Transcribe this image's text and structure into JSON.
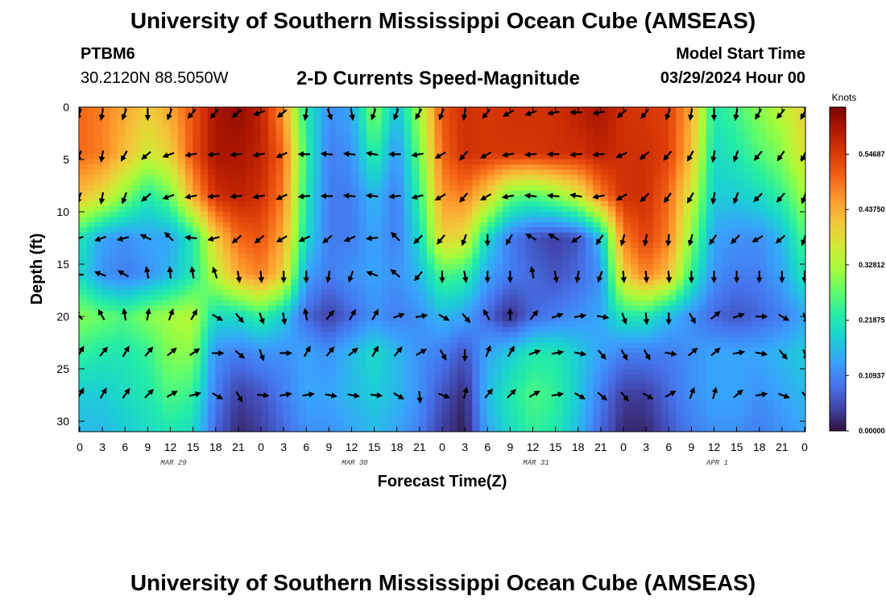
{
  "page": {
    "title": "University of Southern Mississippi Ocean Cube (AMSEAS)",
    "title_repeat": "University of Southern Mississippi Ocean Cube (AMSEAS)",
    "station": "PTBM6",
    "coords": "30.2120N  88.5050W",
    "subtitle": "2-D Currents Speed-Magnitude",
    "start_label": "Model Start Time",
    "start_value": "03/29/2024 Hour 00"
  },
  "chart_data": {
    "type": "heatmap",
    "title": "2-D Currents Speed-Magnitude",
    "xlabel": "Forecast Time(Z)",
    "ylabel": "Depth (ft)",
    "x_hours_range": [
      0,
      96
    ],
    "x_tick_labels": [
      "0",
      "3",
      "6",
      "9",
      "12",
      "15",
      "18",
      "21",
      "0",
      "3",
      "6",
      "9",
      "12",
      "15",
      "18",
      "21",
      "0",
      "3",
      "6",
      "9",
      "12",
      "15",
      "18",
      "21",
      "0",
      "3",
      "6",
      "9",
      "12",
      "15",
      "18",
      "21",
      "0"
    ],
    "date_labels": [
      {
        "label": "MAR 29",
        "hour": 12
      },
      {
        "label": "MAR 30",
        "hour": 36
      },
      {
        "label": "MAR 31",
        "hour": 60
      },
      {
        "label": "APR 1",
        "hour": 84
      }
    ],
    "y_range_ft": [
      0,
      31
    ],
    "y_ticks": [
      "0",
      "5",
      "10",
      "15",
      "20",
      "25",
      "30"
    ],
    "colorbar": {
      "unit": "Knots",
      "range": [
        0,
        0.64
      ],
      "tick_values": [
        0,
        0.109375,
        0.21875,
        0.328125,
        0.4375,
        0.546875
      ],
      "tick_labels": [
        "0.00000",
        "0.10937",
        "0.21875",
        "0.32812",
        "0.43750",
        "0.54687"
      ],
      "colors": [
        "#30123b",
        "#4145ab",
        "#4675ed",
        "#39a2fc",
        "#1bcfd4",
        "#24eca6",
        "#61fc6c",
        "#a4fc3b",
        "#d1e834",
        "#f3c63a",
        "#fe9b2d",
        "#f36315",
        "#d93806",
        "#b11901",
        "#7a0403"
      ]
    },
    "series": [
      {
        "name": "depth 0.5 ft speed",
        "depth_ft": 0.5,
        "values": [
          0.5,
          0.48,
          0.44,
          0.4,
          0.44,
          0.52,
          0.6,
          0.62,
          0.58,
          0.46,
          0.22,
          0.12,
          0.14,
          0.3,
          0.16,
          0.32,
          0.52,
          0.56,
          0.55,
          0.56,
          0.56,
          0.56,
          0.58,
          0.6,
          0.56,
          0.55,
          0.54,
          0.44,
          0.22,
          0.25,
          0.3,
          0.34,
          0.4
        ]
      },
      {
        "name": "depth 4.5 ft speed",
        "depth_ft": 4.5,
        "values": [
          0.5,
          0.48,
          0.42,
          0.36,
          0.4,
          0.52,
          0.6,
          0.6,
          0.58,
          0.5,
          0.24,
          0.1,
          0.12,
          0.24,
          0.12,
          0.28,
          0.5,
          0.56,
          0.55,
          0.55,
          0.55,
          0.56,
          0.56,
          0.58,
          0.56,
          0.56,
          0.54,
          0.42,
          0.2,
          0.22,
          0.26,
          0.3,
          0.38
        ]
      },
      {
        "name": "depth 8.5 ft speed",
        "depth_ft": 8.5,
        "values": [
          0.42,
          0.38,
          0.3,
          0.22,
          0.28,
          0.44,
          0.56,
          0.58,
          0.56,
          0.48,
          0.22,
          0.1,
          0.1,
          0.16,
          0.1,
          0.24,
          0.46,
          0.48,
          0.4,
          0.28,
          0.26,
          0.3,
          0.36,
          0.48,
          0.56,
          0.56,
          0.5,
          0.36,
          0.18,
          0.18,
          0.2,
          0.24,
          0.32
        ]
      },
      {
        "name": "depth 12.5 ft speed",
        "depth_ft": 12.5,
        "values": [
          0.22,
          0.14,
          0.12,
          0.14,
          0.14,
          0.22,
          0.4,
          0.5,
          0.52,
          0.44,
          0.2,
          0.1,
          0.1,
          0.14,
          0.1,
          0.2,
          0.4,
          0.38,
          0.2,
          0.1,
          0.06,
          0.04,
          0.06,
          0.16,
          0.48,
          0.54,
          0.48,
          0.3,
          0.14,
          0.12,
          0.12,
          0.16,
          0.26
        ]
      },
      {
        "name": "depth 16 ft speed",
        "depth_ft": 16,
        "values": [
          0.2,
          0.12,
          0.1,
          0.12,
          0.16,
          0.22,
          0.34,
          0.44,
          0.48,
          0.4,
          0.14,
          0.1,
          0.12,
          0.14,
          0.12,
          0.16,
          0.26,
          0.24,
          0.14,
          0.1,
          0.08,
          0.06,
          0.08,
          0.12,
          0.4,
          0.48,
          0.42,
          0.24,
          0.12,
          0.1,
          0.1,
          0.14,
          0.22
        ]
      },
      {
        "name": "depth 20 ft speed",
        "depth_ft": 20,
        "values": [
          0.3,
          0.28,
          0.26,
          0.3,
          0.32,
          0.34,
          0.2,
          0.2,
          0.24,
          0.18,
          0.08,
          0.04,
          0.08,
          0.12,
          0.1,
          0.12,
          0.16,
          0.14,
          0.08,
          0.02,
          0.08,
          0.1,
          0.12,
          0.14,
          0.22,
          0.22,
          0.16,
          0.12,
          0.08,
          0.06,
          0.08,
          0.1,
          0.14
        ]
      },
      {
        "name": "depth 23.5 ft speed",
        "depth_ft": 23.5,
        "values": [
          0.24,
          0.22,
          0.22,
          0.24,
          0.3,
          0.3,
          0.12,
          0.1,
          0.12,
          0.12,
          0.14,
          0.12,
          0.16,
          0.2,
          0.16,
          0.12,
          0.1,
          0.06,
          0.14,
          0.18,
          0.22,
          0.22,
          0.18,
          0.14,
          0.1,
          0.1,
          0.1,
          0.12,
          0.14,
          0.14,
          0.14,
          0.16,
          0.18
        ]
      },
      {
        "name": "depth 27.5 ft speed",
        "depth_ft": 27.5,
        "values": [
          0.18,
          0.18,
          0.2,
          0.22,
          0.26,
          0.24,
          0.1,
          0.04,
          0.06,
          0.1,
          0.14,
          0.14,
          0.16,
          0.18,
          0.16,
          0.12,
          0.06,
          0.02,
          0.16,
          0.22,
          0.26,
          0.24,
          0.18,
          0.1,
          0.04,
          0.04,
          0.08,
          0.12,
          0.14,
          0.14,
          0.12,
          0.14,
          0.16
        ]
      },
      {
        "name": "depth 31 ft speed",
        "depth_ft": 31,
        "values": [
          0.16,
          0.16,
          0.18,
          0.2,
          0.22,
          0.2,
          0.08,
          0.02,
          0.04,
          0.08,
          0.12,
          0.12,
          0.14,
          0.16,
          0.14,
          0.1,
          0.04,
          0.01,
          0.14,
          0.2,
          0.24,
          0.22,
          0.16,
          0.08,
          0.02,
          0.02,
          0.06,
          0.1,
          0.12,
          0.12,
          0.1,
          0.12,
          0.14
        ]
      }
    ],
    "arrow_directions_deg": [
      {
        "depth_ft": 0.5,
        "values": [
          200,
          190,
          200,
          180,
          200,
          220,
          220,
          230,
          250,
          230,
          190,
          160,
          170,
          200,
          200,
          210,
          200,
          190,
          220,
          240,
          250,
          260,
          270,
          260,
          230,
          220,
          200,
          190,
          180,
          190,
          210,
          220,
          210
        ]
      },
      {
        "name": "row",
        "depth_ft": 4.5,
        "values": [
          200,
          190,
          210,
          230,
          250,
          260,
          265,
          265,
          260,
          245,
          270,
          275,
          275,
          280,
          270,
          260,
          240,
          220,
          240,
          260,
          265,
          270,
          265,
          265,
          245,
          230,
          220,
          210,
          190,
          200,
          220,
          215,
          205
        ]
      },
      {
        "depth_ft": 8.5,
        "values": [
          200,
          190,
          200,
          230,
          250,
          260,
          265,
          265,
          260,
          245,
          265,
          270,
          275,
          275,
          265,
          255,
          240,
          220,
          240,
          260,
          275,
          275,
          280,
          260,
          240,
          225,
          215,
          210,
          190,
          200,
          225,
          220,
          200
        ]
      },
      {
        "depth_ft": 12.5,
        "values": [
          250,
          250,
          255,
          295,
          315,
          275,
          255,
          230,
          230,
          240,
          245,
          230,
          245,
          265,
          315,
          225,
          220,
          200,
          180,
          210,
          300,
          300,
          235,
          215,
          195,
          190,
          185,
          195,
          215,
          225,
          240,
          230,
          200
        ]
      },
      {
        "depth_ft": 16,
        "values": [
          270,
          290,
          300,
          350,
          355,
          350,
          340,
          170,
          175,
          180,
          180,
          190,
          200,
          290,
          310,
          220,
          180,
          170,
          180,
          180,
          350,
          170,
          190,
          200,
          175,
          175,
          175,
          180,
          180,
          180,
          180,
          180,
          180
        ]
      },
      {
        "depth_ft": 20,
        "values": [
          320,
          330,
          350,
          10,
          20,
          30,
          120,
          140,
          160,
          170,
          350,
          40,
          30,
          30,
          70,
          80,
          120,
          140,
          330,
          0,
          40,
          70,
          80,
          100,
          160,
          175,
          180,
          150,
          50,
          70,
          90,
          120,
          160
        ]
      },
      {
        "depth_ft": 23.5,
        "values": [
          30,
          40,
          30,
          40,
          50,
          55,
          90,
          130,
          160,
          90,
          30,
          40,
          50,
          30,
          40,
          60,
          150,
          180,
          20,
          30,
          70,
          80,
          100,
          140,
          150,
          150,
          100,
          50,
          50,
          80,
          100,
          140,
          160
        ]
      },
      {
        "depth_ft": 27.5,
        "values": [
          30,
          30,
          35,
          45,
          60,
          75,
          120,
          150,
          95,
          80,
          80,
          100,
          100,
          95,
          120,
          175,
          110,
          15,
          40,
          45,
          60,
          80,
          120,
          130,
          140,
          120,
          60,
          20,
          15,
          50,
          80,
          110,
          140
        ]
      }
    ]
  }
}
